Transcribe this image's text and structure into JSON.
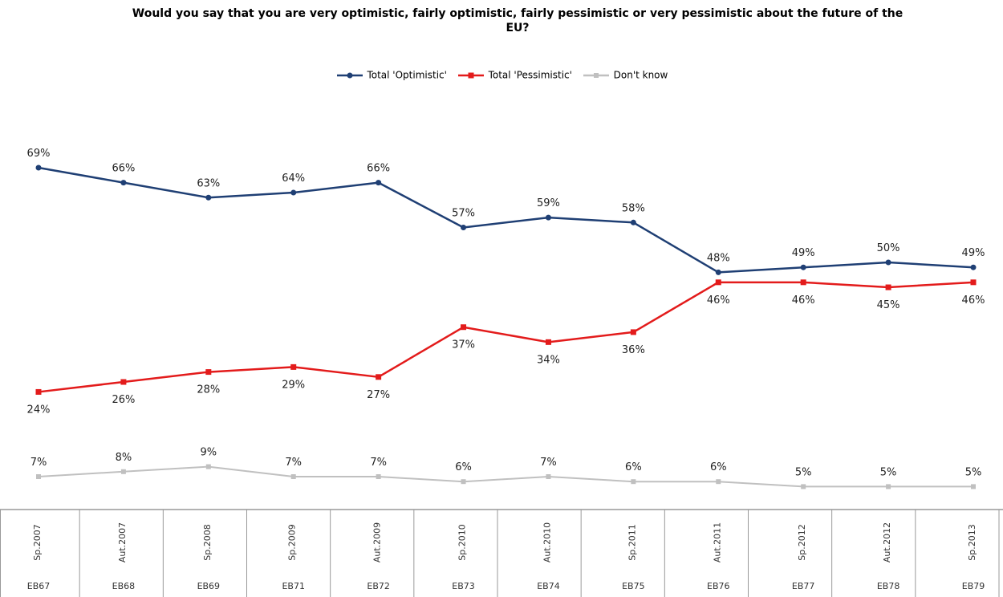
{
  "chart_data": {
    "type": "line",
    "title": "Would you say that you are very optimistic, fairly optimistic, fairly pessimistic or very pessimistic about the future of the EU?",
    "categories": [
      "Sp.2007",
      "Aut.2007",
      "Sp.2008",
      "Sp.2009",
      "Aut.2009",
      "Sp.2010",
      "Aut.2010",
      "Sp.2011",
      "Aut.2011",
      "Sp.2012",
      "Aut.2012",
      "Sp.2013"
    ],
    "surveys": [
      "EB67",
      "EB68",
      "EB69",
      "EB71",
      "EB72",
      "EB73",
      "EB74",
      "EB75",
      "EB76",
      "EB77",
      "EB78",
      "EB79"
    ],
    "series": [
      {
        "name": "Total 'Optimistic'",
        "color": "#1f3f74",
        "marker": "circle",
        "values": [
          69,
          66,
          63,
          64,
          66,
          57,
          59,
          58,
          48,
          49,
          50,
          49
        ],
        "labels": [
          "69%",
          "66%",
          "63%",
          "64%",
          "66%",
          "57%",
          "59%",
          "58%",
          "48%",
          "49%",
          "50%",
          "49%"
        ]
      },
      {
        "name": "Total 'Pessimistic'",
        "color": "#e31b1b",
        "marker": "square",
        "values": [
          24,
          26,
          28,
          29,
          27,
          37,
          34,
          36,
          46,
          46,
          45,
          46
        ],
        "labels": [
          "24%",
          "26%",
          "28%",
          "29%",
          "27%",
          "37%",
          "34%",
          "36%",
          "46%",
          "46%",
          "45%",
          "46%"
        ]
      },
      {
        "name": "Don't know",
        "color": "#c0c0c0",
        "marker": "square",
        "values": [
          7,
          8,
          9,
          7,
          7,
          6,
          7,
          6,
          6,
          5,
          5,
          5
        ],
        "labels": [
          "7%",
          "8%",
          "9%",
          "7%",
          "7%",
          "6%",
          "7%",
          "6%",
          "6%",
          "5%",
          "5%",
          "5%"
        ]
      }
    ],
    "legend_position": "top",
    "grid": false
  }
}
